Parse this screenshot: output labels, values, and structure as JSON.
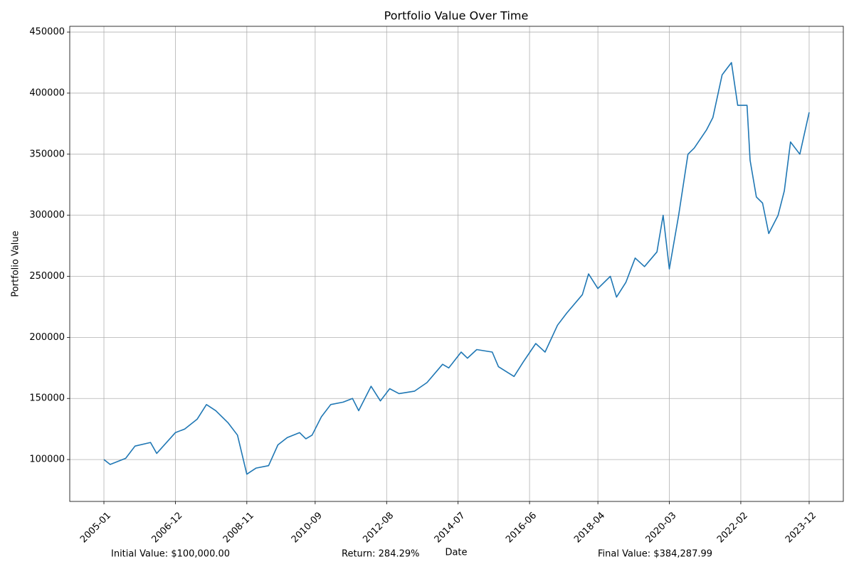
{
  "chart_data": {
    "type": "line",
    "title": "Portfolio Value Over Time",
    "x_label": "Date",
    "y_label": "Portfolio Value",
    "x": [
      "2005-01",
      "2005-03",
      "2005-08",
      "2005-11",
      "2006-04",
      "2006-06",
      "2006-12",
      "2007-03",
      "2007-07",
      "2007-10",
      "2008-01",
      "2008-05",
      "2008-08",
      "2008-11",
      "2009-02",
      "2009-06",
      "2009-09",
      "2009-12",
      "2010-04",
      "2010-06",
      "2010-08",
      "2010-11",
      "2011-02",
      "2011-06",
      "2011-09",
      "2011-11",
      "2012-03",
      "2012-06",
      "2012-09",
      "2012-12",
      "2013-05",
      "2013-09",
      "2014-02",
      "2014-04",
      "2014-08",
      "2014-10",
      "2015-01",
      "2015-06",
      "2015-08",
      "2016-01",
      "2016-04",
      "2016-08",
      "2016-11",
      "2017-03",
      "2017-06",
      "2017-11",
      "2018-01",
      "2018-04",
      "2018-08",
      "2018-10",
      "2019-01",
      "2019-04",
      "2019-07",
      "2019-11",
      "2020-01",
      "2020-03",
      "2020-06",
      "2020-09",
      "2020-11",
      "2021-03",
      "2021-05",
      "2021-08",
      "2021-11",
      "2022-01",
      "2022-04",
      "2022-05",
      "2022-07",
      "2022-09",
      "2022-11",
      "2023-02",
      "2023-04",
      "2023-06",
      "2023-09",
      "2023-12"
    ],
    "values": [
      100000,
      96000,
      101000,
      111000,
      114000,
      105000,
      122000,
      125000,
      133000,
      145000,
      140000,
      130000,
      120000,
      88000,
      93000,
      95000,
      112000,
      118000,
      122000,
      117000,
      120000,
      135000,
      145000,
      147000,
      150000,
      140000,
      160000,
      148000,
      158000,
      154000,
      156000,
      163000,
      178000,
      175000,
      188000,
      183000,
      190000,
      188000,
      176000,
      168000,
      180000,
      195000,
      188000,
      210000,
      220000,
      235000,
      252000,
      240000,
      250000,
      233000,
      245000,
      265000,
      258000,
      270000,
      300000,
      256000,
      300000,
      350000,
      355000,
      370000,
      380000,
      415000,
      425000,
      390000,
      390000,
      345000,
      315000,
      310000,
      285000,
      300000,
      320000,
      360000,
      350000,
      384287.99
    ],
    "color": "#1f77b4",
    "xlim": [
      "2004-02",
      "2024-11"
    ],
    "xticks": [
      "2005-01",
      "2006-12",
      "2008-11",
      "2010-09",
      "2012-08",
      "2014-07",
      "2016-06",
      "2018-04",
      "2020-03",
      "2022-02",
      "2023-12"
    ],
    "ylim": [
      65700,
      454700
    ],
    "yticks": [
      100000,
      150000,
      200000,
      250000,
      300000,
      350000,
      400000,
      450000
    ],
    "grid": true,
    "annotations": [
      "Initial Value: $100,000.00",
      "Return: 284.29%",
      "Final Value: $384,287.99"
    ]
  }
}
